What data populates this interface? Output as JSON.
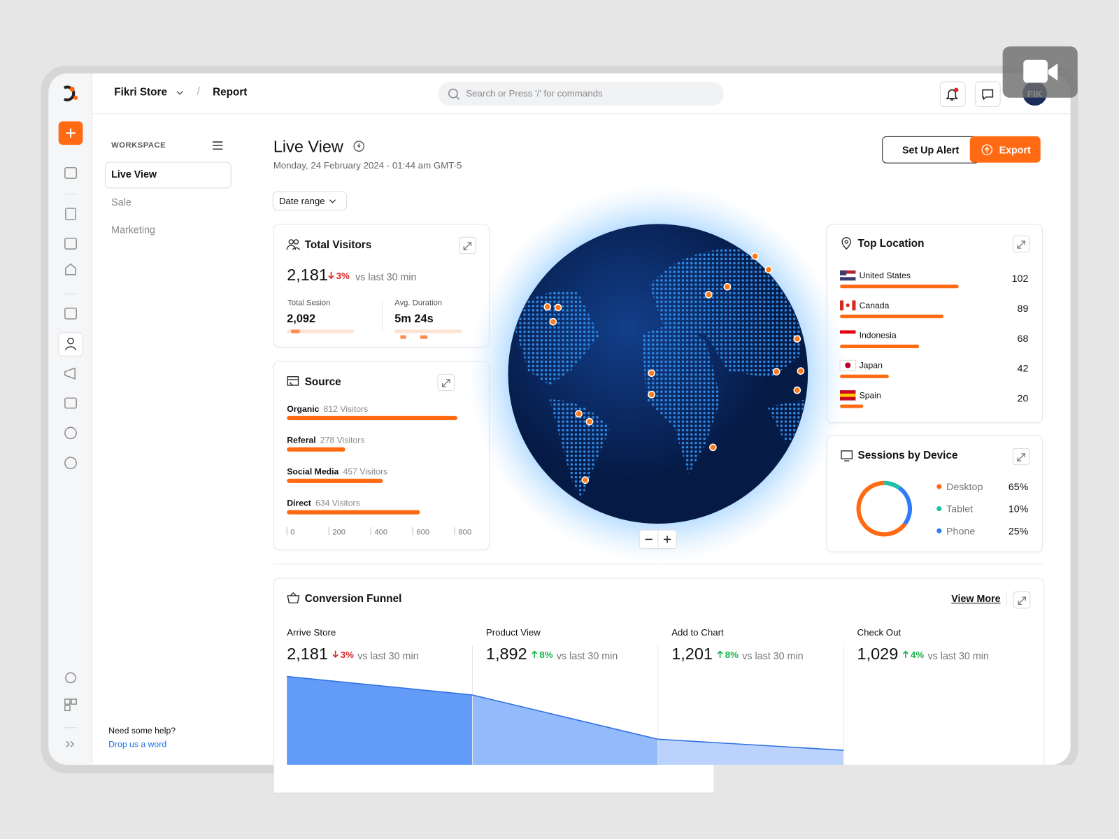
{
  "header": {
    "store": "Fikri Store",
    "page": "Report",
    "search_placeholder": "Search or Press '/' for commands",
    "avatar": "FIK"
  },
  "sidebar": {
    "section": "WORKSPACE",
    "items": [
      "Live View",
      "Sale",
      "Marketing"
    ],
    "help": "Need some help?",
    "help_link": "Drop us a word"
  },
  "page": {
    "title": "Live View",
    "date": "Monday, 24 February 2024 - 01:44 am GMT-5",
    "alert_button": "Set Up Alert",
    "export_button": "Export",
    "date_range": "Date range"
  },
  "total_visitors": {
    "title": "Total Visitors",
    "value": "2,181",
    "change": "3%",
    "direction": "down",
    "compare": "vs last 30 min",
    "stats": [
      {
        "label": "Total Sesion",
        "value": "2,092"
      },
      {
        "label": "Avg. Duration",
        "value": "5m 24s"
      }
    ]
  },
  "source": {
    "type": "bar",
    "title": "Source",
    "categories": [
      "Organic",
      "Referal",
      "Social Media",
      "Direct"
    ],
    "values": [
      812,
      278,
      457,
      634
    ],
    "value_labels": [
      "812 Visitors",
      "278 Visitors",
      "457 Visitors",
      "634 Visitors"
    ],
    "color": "#ff6a13",
    "xlim": [
      0,
      850
    ],
    "xticks": [
      0,
      200,
      400,
      600,
      800
    ]
  },
  "top_location": {
    "type": "bar",
    "title": "Top Location",
    "categories": [
      "United States",
      "Canada",
      "Indonesia",
      "Japan",
      "Spain"
    ],
    "values": [
      102,
      89,
      68,
      42,
      20
    ],
    "color": "#ff6a13"
  },
  "sessions_by_device": {
    "type": "pie",
    "title": "Sessions by Device",
    "series": [
      {
        "name": "Desktop",
        "color": "#ff6a13",
        "value": 65,
        "value_label": "65%"
      },
      {
        "name": "Tablet",
        "color": "#1ec0a8",
        "value": 10,
        "value_label": "10%"
      },
      {
        "name": "Phone",
        "color": "#2f7cf6",
        "value": 25,
        "value_label": "25%"
      }
    ]
  },
  "conversion_funnel": {
    "type": "area",
    "title": "Conversion Funnel",
    "link": "View More",
    "color": "#3b82f6",
    "categories": [
      "Arrive Store",
      "Product View",
      "Add to Chart",
      "Check Out"
    ],
    "values": [
      2181,
      1892,
      1201,
      1029
    ],
    "value_labels": [
      "2,181",
      "1,892",
      "1,201",
      "1,029"
    ],
    "changes": [
      "3%",
      "8%",
      "8%",
      "4%"
    ],
    "directions": [
      "down",
      "up",
      "up",
      "up"
    ],
    "compare": "vs last 30 min"
  }
}
